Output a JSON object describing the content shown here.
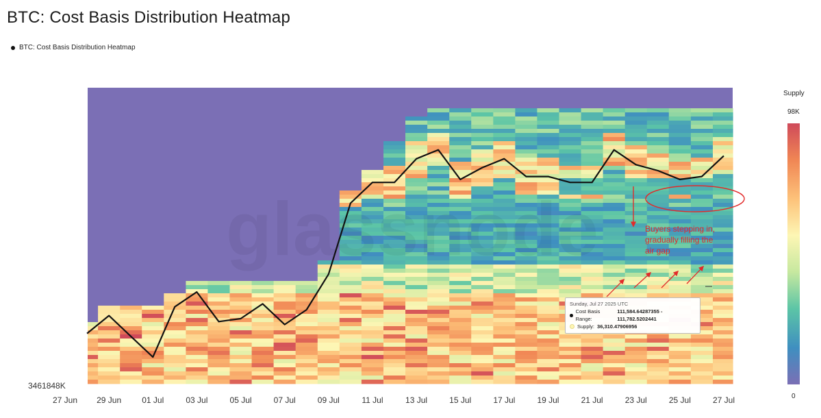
{
  "title": "BTC: Cost Basis Distribution Heatmap",
  "legend": {
    "label": "BTC: Cost Basis Distribution Heatmap",
    "color": "#111111"
  },
  "watermark": "glassnode",
  "chart_data": {
    "type": "heatmap",
    "title": "BTC: Cost Basis Distribution Heatmap",
    "x_ticks": [
      "27 Jun",
      "29 Jun",
      "01 Jul",
      "03 Jul",
      "05 Jul",
      "07 Jul",
      "09 Jul",
      "11 Jul",
      "13 Jul",
      "15 Jul",
      "17 Jul",
      "19 Jul",
      "21 Jul",
      "23 Jul",
      "25 Jul",
      "27 Jul"
    ],
    "y_min_label": "3461848K",
    "colorbar": {
      "title": "Supply",
      "max_label": "98K",
      "min_label": "0",
      "colors": [
        "#7b6fb5",
        "#3f8fc0",
        "#5cc5a6",
        "#c6e89f",
        "#fdf6b4",
        "#fdc27a",
        "#f08654",
        "#cf4a5a"
      ]
    },
    "series": [
      {
        "name": "BTC: Cost Basis Distribution Heatmap",
        "type": "line",
        "x": [
          "28 Jun",
          "29 Jun",
          "30 Jun",
          "01 Jul",
          "02 Jul",
          "03 Jul",
          "04 Jul",
          "05 Jul",
          "06 Jul",
          "07 Jul",
          "08 Jul",
          "09 Jul",
          "10 Jul",
          "11 Jul",
          "12 Jul",
          "13 Jul",
          "14 Jul",
          "15 Jul",
          "16 Jul",
          "17 Jul",
          "18 Jul",
          "19 Jul",
          "20 Jul",
          "21 Jul",
          "22 Jul",
          "23 Jul",
          "24 Jul",
          "25 Jul",
          "26 Jul",
          "27 Jul"
        ],
        "y": [
          0.17,
          0.23,
          0.16,
          0.09,
          0.26,
          0.31,
          0.21,
          0.22,
          0.27,
          0.2,
          0.25,
          0.37,
          0.61,
          0.68,
          0.68,
          0.76,
          0.79,
          0.69,
          0.73,
          0.76,
          0.7,
          0.7,
          0.68,
          0.68,
          0.79,
          0.74,
          0.72,
          0.69,
          0.7,
          0.77
        ]
      }
    ],
    "annotations": {
      "text_lines": [
        "Buyers stepping in,",
        "gradually filling the",
        "air gap"
      ],
      "color": "#e22a2a"
    },
    "tooltip": {
      "date": "Sunday, Jul 27 2025 UTC",
      "range_label": "Cost Basis Range:",
      "range_value": "111,584.64287355 - 111,782.5202441",
      "supply_label": "Supply:",
      "supply_value": "36,310.47906956"
    }
  }
}
